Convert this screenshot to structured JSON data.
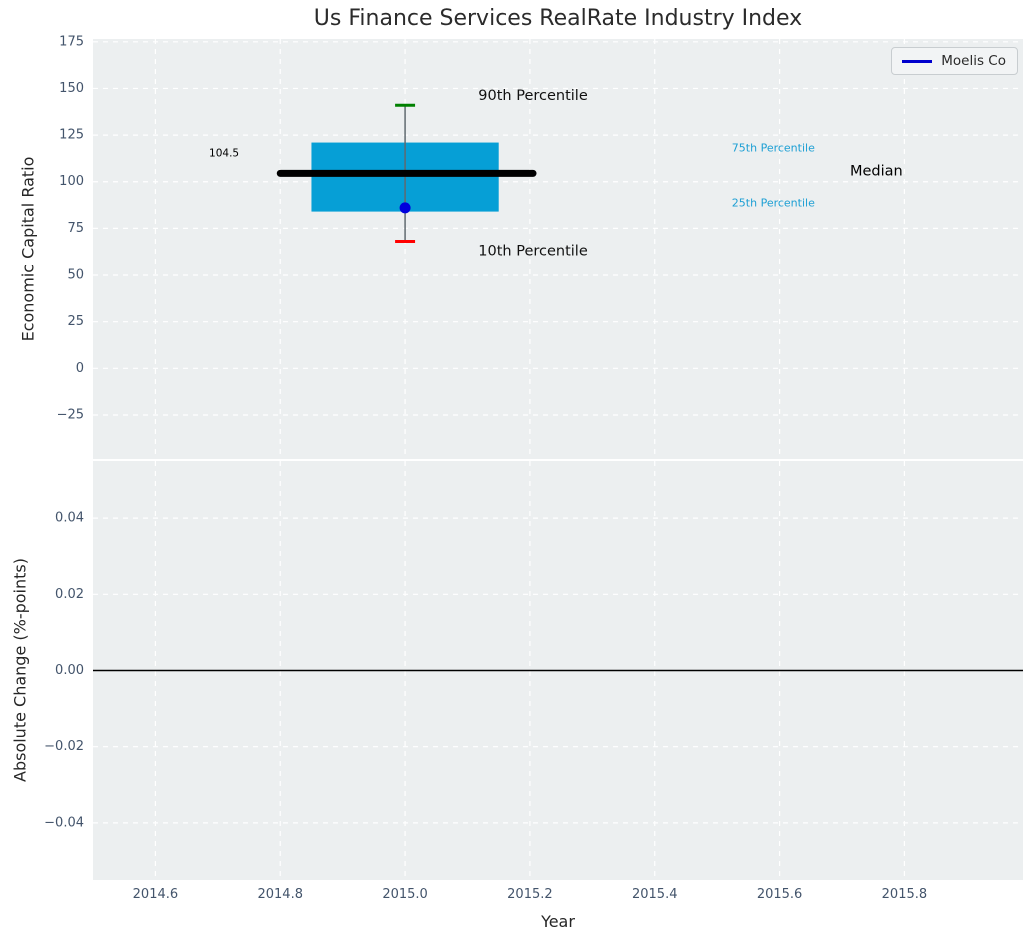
{
  "title": "Us Finance Services RealRate Industry Index",
  "legend": {
    "items": [
      {
        "label": "Moelis Co",
        "color": "#0000cd"
      }
    ]
  },
  "colors": {
    "figure_bg": "#ffffff",
    "plot_bg": "#eceff0",
    "grid": "#ffffff",
    "tick_label": "#43546b",
    "axis_label": "#262626",
    "title": "#2b2b2b",
    "box_fill": "#069fd6",
    "median_line": "#000000",
    "whisker": "#606a70",
    "cap_90th": "#008000",
    "cap_10th": "#ff0000",
    "point": "#0000dd",
    "zero_line": "#000000",
    "legend_text": "#2b2b2b"
  },
  "chart_data": [
    {
      "type": "boxplot",
      "title": "Us Finance Services RealRate Industry Index",
      "ylabel": "Economic Capital Ratio",
      "grid": true,
      "legend_position": "upper right",
      "xlim": [
        2014.5,
        2015.99
      ],
      "ylim": [
        -48.6,
        176.5
      ],
      "xticks": [
        {
          "value": 2014.6,
          "label": "2014.6"
        },
        {
          "value": 2014.8,
          "label": "2014.8"
        },
        {
          "value": 2015.0,
          "label": "2015.0"
        },
        {
          "value": 2015.2,
          "label": "2015.2"
        },
        {
          "value": 2015.4,
          "label": "2015.4"
        },
        {
          "value": 2015.6,
          "label": "2015.6"
        },
        {
          "value": 2015.8,
          "label": "2015.8"
        }
      ],
      "yticks": [
        {
          "value": 175,
          "label": "175"
        },
        {
          "value": 150,
          "label": "150"
        },
        {
          "value": 125,
          "label": "125"
        },
        {
          "value": 100,
          "label": "100"
        },
        {
          "value": 75,
          "label": "75"
        },
        {
          "value": 50,
          "label": "50"
        },
        {
          "value": 25,
          "label": "25"
        },
        {
          "value": 0,
          "label": "0"
        },
        {
          "value": -25,
          "label": "−25"
        }
      ],
      "box": {
        "x": 2015.0,
        "p10": 68,
        "p25": 84,
        "median": 104.5,
        "p75": 121,
        "p90": 141,
        "box_x_range": [
          2014.85,
          2015.15
        ],
        "median_x_range": [
          2014.8,
          2015.205
        ],
        "cap_halfwidth": 0.016
      },
      "series": [
        {
          "name": "Moelis Co",
          "x": [
            2015.0
          ],
          "y": [
            86
          ]
        }
      ],
      "annotations": [
        {
          "text": "104.5",
          "x": 2014.71,
          "y": 115,
          "size": 10.5,
          "color": "#000000"
        },
        {
          "text": "90th Percentile",
          "x": 2015.205,
          "y": 146,
          "size": 14.5,
          "color": "#111111"
        },
        {
          "text": "10th Percentile",
          "x": 2015.205,
          "y": 62.5,
          "size": 14.5,
          "color": "#111111"
        },
        {
          "text": "75th Percentile",
          "x": 2015.59,
          "y": 118,
          "size": 11,
          "color": "#1c9fd4"
        },
        {
          "text": "25th Percentile",
          "x": 2015.59,
          "y": 88.5,
          "size": 11,
          "color": "#1c9fd4"
        },
        {
          "text": "Median",
          "x": 2015.755,
          "y": 105.5,
          "size": 14.5,
          "color": "#000000"
        }
      ]
    },
    {
      "type": "line",
      "ylabel": "Absolute Change (%-points)",
      "xlabel": "Year",
      "grid": true,
      "zero_line": 0.0,
      "xlim": [
        2014.5,
        2015.99
      ],
      "ylim": [
        -0.055,
        0.055
      ],
      "xticks": [
        {
          "value": 2014.6,
          "label": "2014.6"
        },
        {
          "value": 2014.8,
          "label": "2014.8"
        },
        {
          "value": 2015.0,
          "label": "2015.0"
        },
        {
          "value": 2015.2,
          "label": "2015.2"
        },
        {
          "value": 2015.4,
          "label": "2015.4"
        },
        {
          "value": 2015.6,
          "label": "2015.6"
        },
        {
          "value": 2015.8,
          "label": "2015.8"
        }
      ],
      "yticks": [
        {
          "value": 0.04,
          "label": "0.04"
        },
        {
          "value": 0.02,
          "label": "0.02"
        },
        {
          "value": 0.0,
          "label": "0.00"
        },
        {
          "value": -0.02,
          "label": "−0.02"
        },
        {
          "value": -0.04,
          "label": "−0.04"
        }
      ],
      "series": []
    }
  ]
}
